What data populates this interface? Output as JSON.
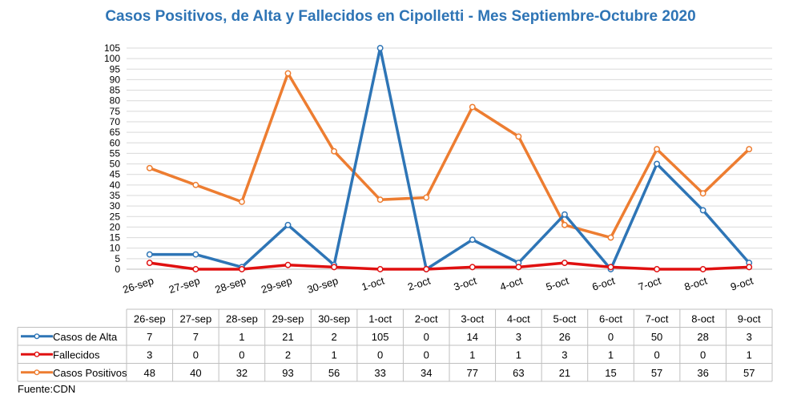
{
  "chart_data": {
    "type": "line",
    "title": "Casos Positivos, de Alta y Fallecidos en Cipolletti - Mes Septiembre-Octubre 2020",
    "source": "Fuente:CDN",
    "categories": [
      "26-sep",
      "27-sep",
      "28-sep",
      "29-sep",
      "30-sep",
      "1-oct",
      "2-oct",
      "3-oct",
      "4-oct",
      "5-oct",
      "6-oct",
      "7-oct",
      "8-oct",
      "9-oct"
    ],
    "ylim": [
      0,
      105
    ],
    "yticks": [
      0,
      5,
      10,
      15,
      20,
      25,
      30,
      35,
      40,
      45,
      50,
      55,
      60,
      65,
      70,
      75,
      80,
      85,
      90,
      95,
      100,
      105
    ],
    "grid": true,
    "legend": "data-table",
    "series": [
      {
        "name": "Casos de Alta",
        "color": "#2e75b6",
        "values": [
          7,
          7,
          1,
          21,
          2,
          105,
          0,
          14,
          3,
          26,
          0,
          50,
          28,
          3
        ]
      },
      {
        "name": "Fallecidos",
        "color": "#e01010",
        "values": [
          3,
          0,
          0,
          2,
          1,
          0,
          0,
          1,
          1,
          3,
          1,
          0,
          0,
          1
        ]
      },
      {
        "name": "Casos Positivos",
        "color": "#ed7d31",
        "values": [
          48,
          40,
          32,
          93,
          56,
          33,
          34,
          77,
          63,
          21,
          15,
          57,
          36,
          57
        ]
      }
    ]
  }
}
